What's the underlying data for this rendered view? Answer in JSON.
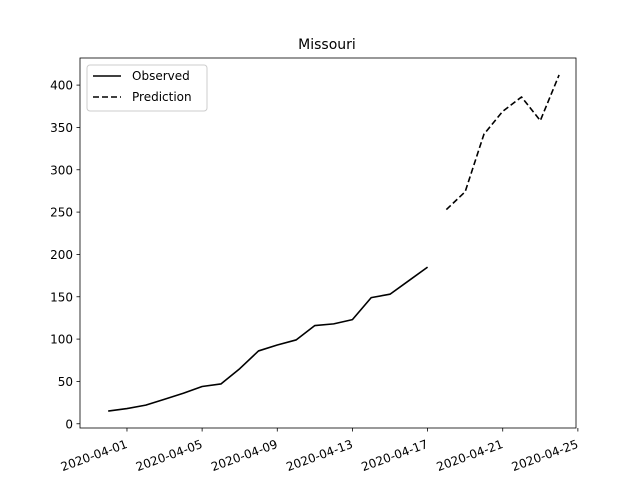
{
  "chart_data": {
    "type": "line",
    "title": "Missouri",
    "xlabel": "",
    "ylabel": "",
    "x_type": "date",
    "xlim": [
      "2020-03-30",
      "2020-04-25"
    ],
    "ylim": [
      -5,
      432
    ],
    "x_ticks": [
      "2020-04-01",
      "2020-04-05",
      "2020-04-09",
      "2020-04-13",
      "2020-04-17",
      "2020-04-21",
      "2020-04-25"
    ],
    "y_ticks": [
      0,
      50,
      100,
      150,
      200,
      250,
      300,
      350,
      400
    ],
    "legend": {
      "position": "top-left"
    },
    "grid": false,
    "series": [
      {
        "name": "Observed",
        "style": "solid",
        "color": "#000000",
        "x": [
          "2020-03-31",
          "2020-04-01",
          "2020-04-02",
          "2020-04-03",
          "2020-04-04",
          "2020-04-05",
          "2020-04-06",
          "2020-04-07",
          "2020-04-08",
          "2020-04-09",
          "2020-04-10",
          "2020-04-11",
          "2020-04-12",
          "2020-04-13",
          "2020-04-14",
          "2020-04-15",
          "2020-04-16",
          "2020-04-17"
        ],
        "y": [
          15,
          18,
          22,
          29,
          36,
          44,
          47,
          65,
          86,
          93,
          99,
          116,
          118,
          123,
          149,
          153,
          169,
          185
        ]
      },
      {
        "name": "Prediction",
        "style": "dashed",
        "color": "#000000",
        "x": [
          "2020-04-18",
          "2020-04-19",
          "2020-04-20",
          "2020-04-21",
          "2020-04-22",
          "2020-04-23",
          "2020-04-24"
        ],
        "y": [
          253,
          274,
          342,
          369,
          386,
          358,
          412
        ]
      }
    ]
  }
}
